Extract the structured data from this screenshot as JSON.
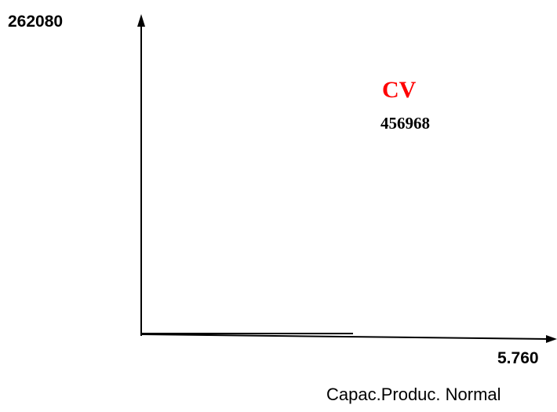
{
  "y_axis": {
    "label": "262080"
  },
  "x_axis": {
    "label": "5.760",
    "title": "Capac.Produc. Normal"
  },
  "annotation": {
    "title": "CV",
    "value": "456968"
  }
}
